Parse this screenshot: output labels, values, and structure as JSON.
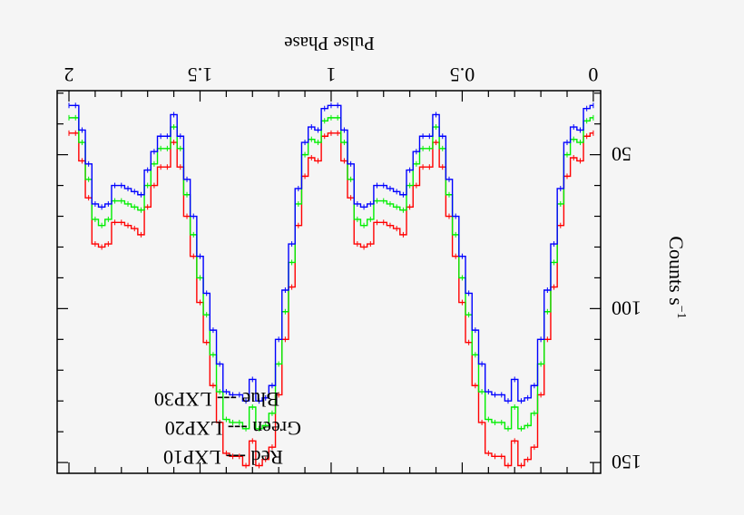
{
  "chart_data": {
    "type": "line",
    "orientation": "rotated 180 degrees",
    "xlabel": "Pulse Phase",
    "ylabel": "Counts s",
    "ylabel_superscript": "−1",
    "xlim": [
      -0.028,
      2.045
    ],
    "ylim": [
      29.2,
      153.5
    ],
    "xticks": [
      0,
      0.5,
      1,
      1.5,
      2
    ],
    "xtick_labels": [
      "0",
      "0.5",
      "1",
      "1.5",
      "2"
    ],
    "yticks": [
      50,
      100,
      150
    ],
    "ytick_labels": [
      "50",
      "100",
      "150"
    ],
    "grid": false,
    "legend": [
      {
        "color_name": "Red",
        "dash": "---",
        "label": "LXP10"
      },
      {
        "color_name": "Green",
        "dash": "---",
        "label": "LXP20"
      },
      {
        "color_name": "Blue",
        "dash": "---",
        "label": "LXP30"
      }
    ],
    "legend_placement": "bottom-left (as rotated)",
    "x": [
      0,
      0.025,
      0.05,
      0.075,
      0.1,
      0.125,
      0.15,
      0.175,
      0.2,
      0.225,
      0.25,
      0.275,
      0.3,
      0.325,
      0.35,
      0.375,
      0.4,
      0.425,
      0.45,
      0.475,
      0.5,
      0.525,
      0.55,
      0.575,
      0.6,
      0.625,
      0.65,
      0.675,
      0.7,
      0.725,
      0.75,
      0.775,
      0.8,
      0.825,
      0.85,
      0.875,
      0.9,
      0.925,
      0.95,
      0.975,
      1,
      1.025,
      1.05,
      1.075,
      1.1,
      1.125,
      1.15,
      1.175,
      1.2,
      1.225,
      1.25,
      1.275,
      1.3,
      1.325,
      1.35,
      1.375,
      1.4,
      1.425,
      1.45,
      1.475,
      1.5,
      1.525,
      1.55,
      1.575,
      1.6,
      1.625,
      1.65,
      1.675,
      1.7,
      1.725,
      1.75,
      1.775,
      1.8,
      1.825,
      1.85,
      1.875,
      1.9,
      1.925,
      1.95,
      1.975,
      2
    ],
    "series": [
      {
        "name": "LXP10",
        "color": "#ff0000",
        "values": [
          43,
          44,
          52,
          51,
          57,
          73,
          93,
          110,
          128,
          145,
          149,
          151,
          143,
          151,
          148,
          148,
          147,
          137,
          125,
          111,
          98,
          83,
          70,
          54,
          46,
          54,
          54,
          60,
          67,
          76,
          74,
          73,
          72,
          72,
          79,
          80,
          79,
          64,
          52,
          43,
          43,
          44,
          52,
          51,
          57,
          73,
          93,
          110,
          128,
          145,
          149,
          151,
          143,
          151,
          148,
          148,
          147,
          137,
          125,
          111,
          98,
          83,
          70,
          54,
          46,
          54,
          54,
          60,
          67,
          76,
          74,
          73,
          72,
          72,
          79,
          80,
          79,
          64,
          52,
          43,
          43
        ]
      },
      {
        "name": "LXP20",
        "color": "#00ee00",
        "values": [
          38,
          39,
          46,
          45,
          50,
          66,
          85,
          101,
          118,
          134,
          138,
          139,
          132,
          139,
          137,
          137,
          136,
          127,
          115,
          102,
          90,
          76,
          63,
          48,
          41,
          48,
          48,
          53,
          60,
          68,
          67,
          66,
          65,
          65,
          71,
          73,
          71,
          58,
          46,
          38,
          38,
          39,
          46,
          45,
          50,
          66,
          85,
          101,
          118,
          134,
          138,
          139,
          132,
          139,
          137,
          137,
          136,
          127,
          115,
          102,
          90,
          76,
          63,
          48,
          41,
          48,
          48,
          53,
          60,
          68,
          67,
          66,
          65,
          65,
          71,
          73,
          71,
          58,
          46,
          38,
          38
        ]
      },
      {
        "name": "LXP30",
        "color": "#0000ff",
        "values": [
          34,
          35,
          42,
          41,
          46,
          61,
          79,
          94,
          110,
          125,
          129,
          130,
          123,
          130,
          128,
          128,
          127,
          118,
          107,
          95,
          83,
          70,
          58,
          44,
          37,
          44,
          44,
          49,
          55,
          63,
          62,
          61,
          60,
          60,
          66,
          67,
          66,
          53,
          42,
          34,
          34,
          35,
          42,
          41,
          46,
          61,
          79,
          94,
          110,
          125,
          129,
          130,
          123,
          130,
          128,
          128,
          127,
          118,
          107,
          95,
          83,
          70,
          58,
          44,
          37,
          44,
          44,
          49,
          55,
          63,
          62,
          61,
          60,
          60,
          66,
          67,
          66,
          53,
          42,
          34,
          34
        ]
      }
    ]
  }
}
